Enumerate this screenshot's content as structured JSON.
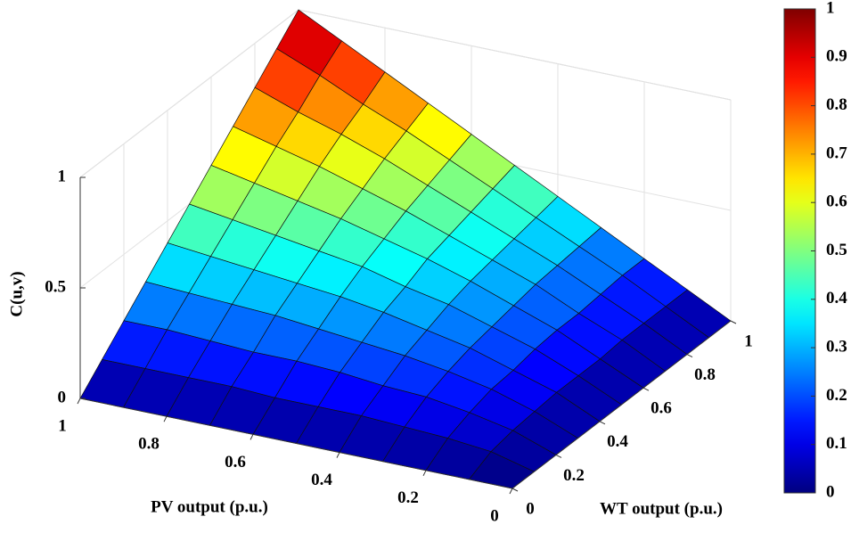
{
  "chart_data": {
    "type": "surface",
    "xlabel": "PV output (p.u.)",
    "ylabel": "WT output (p.u.)",
    "zlabel": "C(u,v)",
    "x": [
      0,
      0.1,
      0.2,
      0.3,
      0.4,
      0.5,
      0.6,
      0.7,
      0.8,
      0.9,
      1
    ],
    "y": [
      0,
      0.1,
      0.2,
      0.3,
      0.4,
      0.5,
      0.6,
      0.7,
      0.8,
      0.9,
      1
    ],
    "z": [
      [
        0,
        0,
        0,
        0,
        0,
        0,
        0,
        0,
        0,
        0,
        0
      ],
      [
        0,
        0.05,
        0.07,
        0.08,
        0.09,
        0.09,
        0.09,
        0.1,
        0.1,
        0.1,
        0.1
      ],
      [
        0,
        0.07,
        0.11,
        0.14,
        0.15,
        0.17,
        0.18,
        0.18,
        0.19,
        0.2,
        0.2
      ],
      [
        0,
        0.08,
        0.14,
        0.18,
        0.21,
        0.23,
        0.25,
        0.27,
        0.28,
        0.29,
        0.3
      ],
      [
        0,
        0.09,
        0.15,
        0.21,
        0.25,
        0.29,
        0.32,
        0.34,
        0.36,
        0.38,
        0.4
      ],
      [
        0,
        0.09,
        0.17,
        0.23,
        0.29,
        0.33,
        0.38,
        0.41,
        0.44,
        0.47,
        0.5
      ],
      [
        0,
        0.09,
        0.18,
        0.25,
        0.32,
        0.38,
        0.43,
        0.48,
        0.52,
        0.56,
        0.6
      ],
      [
        0,
        0.1,
        0.18,
        0.27,
        0.34,
        0.41,
        0.48,
        0.54,
        0.6,
        0.65,
        0.7
      ],
      [
        0,
        0.1,
        0.19,
        0.28,
        0.36,
        0.44,
        0.52,
        0.6,
        0.67,
        0.73,
        0.8
      ],
      [
        0,
        0.1,
        0.2,
        0.29,
        0.38,
        0.47,
        0.56,
        0.65,
        0.73,
        0.82,
        0.9
      ],
      [
        0,
        0.1,
        0.2,
        0.3,
        0.4,
        0.5,
        0.6,
        0.7,
        0.8,
        0.9,
        1
      ]
    ],
    "xlim": [
      0,
      1
    ],
    "ylim": [
      0,
      1
    ],
    "zlim": [
      0,
      1
    ],
    "xticks": [
      0,
      0.2,
      0.4,
      0.6,
      0.8,
      1
    ],
    "yticks": [
      0,
      0.2,
      0.4,
      0.6,
      0.8,
      1
    ],
    "zticks": [
      0,
      0.5,
      1
    ],
    "colormap": "jet",
    "clim": [
      0,
      1
    ],
    "cticks": [
      0,
      0.1,
      0.2,
      0.3,
      0.4,
      0.5,
      0.6,
      0.7,
      0.8,
      0.9,
      1
    ],
    "grid": true
  }
}
